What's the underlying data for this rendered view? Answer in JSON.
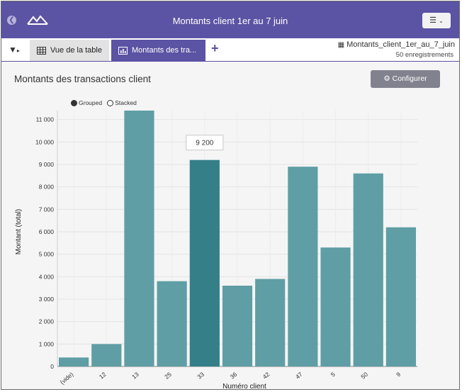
{
  "app": {
    "title": "Montants client 1er au 7 juin"
  },
  "tabs": [
    {
      "label": "Vue de la table",
      "icon": "table-icon"
    },
    {
      "label": "Montants des tra...",
      "icon": "bar-chart-icon"
    }
  ],
  "dataset": {
    "name": "Montants_client_1er_au_7_juin",
    "count": "50 enregistrements"
  },
  "chart_title": "Montants des transactions client",
  "configure_label": "Configurer",
  "legend": {
    "grouped": "Grouped",
    "stacked": "Stacked"
  },
  "tooltip": {
    "text": "9 200"
  },
  "colors": {
    "header": "#5b53a3",
    "bar": "#5f9ea4",
    "bar_highlight": "#357f89"
  },
  "chart_data": {
    "type": "bar",
    "categories": [
      "(vide)",
      "12",
      "13",
      "25",
      "33",
      "36",
      "42",
      "47",
      "5",
      "50",
      "9"
    ],
    "values": [
      400,
      1000,
      11400,
      3800,
      9200,
      3600,
      3900,
      8900,
      5300,
      8600,
      6200
    ],
    "highlight_index": 4,
    "xlabel": "Numéro client",
    "ylabel": "Montant (total)",
    "ylim": [
      0,
      11400
    ],
    "yticks": [
      0,
      1000,
      2000,
      3000,
      4000,
      5000,
      6000,
      7000,
      8000,
      9000,
      10000,
      11000
    ],
    "ytick_labels": [
      "0",
      "1 000",
      "2 000",
      "3 000",
      "4 000",
      "5 000",
      "6 000",
      "7 000",
      "8 000",
      "9 000",
      "10 000",
      "11 000"
    ],
    "grid": true
  }
}
